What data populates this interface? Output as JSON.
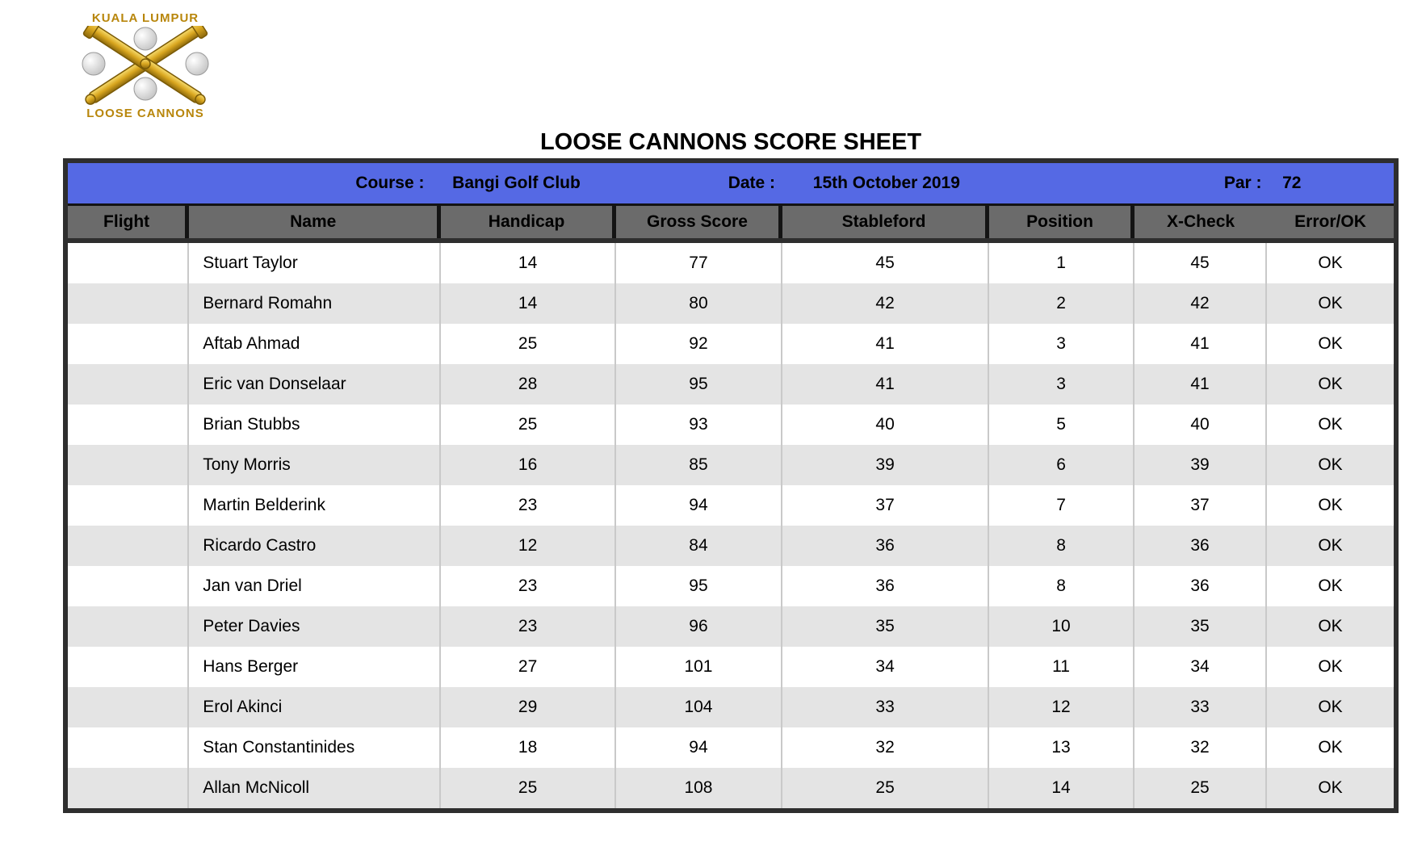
{
  "logo": {
    "top_text": "KUALA LUMPUR",
    "bottom_text": "LOOSE CANNONS",
    "gold_color": "#B8860B"
  },
  "title": "LOOSE CANNONS SCORE SHEET",
  "info_bar": {
    "background": "#5569E4",
    "course_label": "Course :",
    "course_value": "Bangi Golf Club",
    "date_label": "Date :",
    "date_value": "15th October 2019",
    "par_label": "Par :",
    "par_value": "72"
  },
  "table": {
    "header_bg": "#6B6B6B",
    "alt_row_bg": "#E4E4E4",
    "columns": [
      "Flight",
      "Name",
      "Handicap",
      "Gross Score",
      "Stableford",
      "Position",
      "X-Check",
      "Error/OK"
    ],
    "column_keys": [
      "flight",
      "name",
      "handicap",
      "gross_score",
      "stableford",
      "position",
      "x_check",
      "error_ok"
    ],
    "rows": [
      {
        "flight": "",
        "name": "Stuart Taylor",
        "handicap": "14",
        "gross_score": "77",
        "stableford": "45",
        "position": "1",
        "x_check": "45",
        "error_ok": "OK"
      },
      {
        "flight": "",
        "name": "Bernard Romahn",
        "handicap": "14",
        "gross_score": "80",
        "stableford": "42",
        "position": "2",
        "x_check": "42",
        "error_ok": "OK"
      },
      {
        "flight": "",
        "name": "Aftab Ahmad",
        "handicap": "25",
        "gross_score": "92",
        "stableford": "41",
        "position": "3",
        "x_check": "41",
        "error_ok": "OK"
      },
      {
        "flight": "",
        "name": "Eric van Donselaar",
        "handicap": "28",
        "gross_score": "95",
        "stableford": "41",
        "position": "3",
        "x_check": "41",
        "error_ok": "OK"
      },
      {
        "flight": "",
        "name": "Brian Stubbs",
        "handicap": "25",
        "gross_score": "93",
        "stableford": "40",
        "position": "5",
        "x_check": "40",
        "error_ok": "OK"
      },
      {
        "flight": "",
        "name": "Tony Morris",
        "handicap": "16",
        "gross_score": "85",
        "stableford": "39",
        "position": "6",
        "x_check": "39",
        "error_ok": "OK"
      },
      {
        "flight": "",
        "name": "Martin Belderink",
        "handicap": "23",
        "gross_score": "94",
        "stableford": "37",
        "position": "7",
        "x_check": "37",
        "error_ok": "OK"
      },
      {
        "flight": "",
        "name": "Ricardo Castro",
        "handicap": "12",
        "gross_score": "84",
        "stableford": "36",
        "position": "8",
        "x_check": "36",
        "error_ok": "OK"
      },
      {
        "flight": "",
        "name": "Jan van Driel",
        "handicap": "23",
        "gross_score": "95",
        "stableford": "36",
        "position": "8",
        "x_check": "36",
        "error_ok": "OK"
      },
      {
        "flight": "",
        "name": "Peter Davies",
        "handicap": "23",
        "gross_score": "96",
        "stableford": "35",
        "position": "10",
        "x_check": "35",
        "error_ok": "OK"
      },
      {
        "flight": "",
        "name": "Hans Berger",
        "handicap": "27",
        "gross_score": "101",
        "stableford": "34",
        "position": "11",
        "x_check": "34",
        "error_ok": "OK"
      },
      {
        "flight": "",
        "name": "Erol Akinci",
        "handicap": "29",
        "gross_score": "104",
        "stableford": "33",
        "position": "12",
        "x_check": "33",
        "error_ok": "OK"
      },
      {
        "flight": "",
        "name": "Stan Constantinides",
        "handicap": "18",
        "gross_score": "94",
        "stableford": "32",
        "position": "13",
        "x_check": "32",
        "error_ok": "OK"
      },
      {
        "flight": "",
        "name": "Allan McNicoll",
        "handicap": "25",
        "gross_score": "108",
        "stableford": "25",
        "position": "14",
        "x_check": "25",
        "error_ok": "OK"
      }
    ]
  }
}
